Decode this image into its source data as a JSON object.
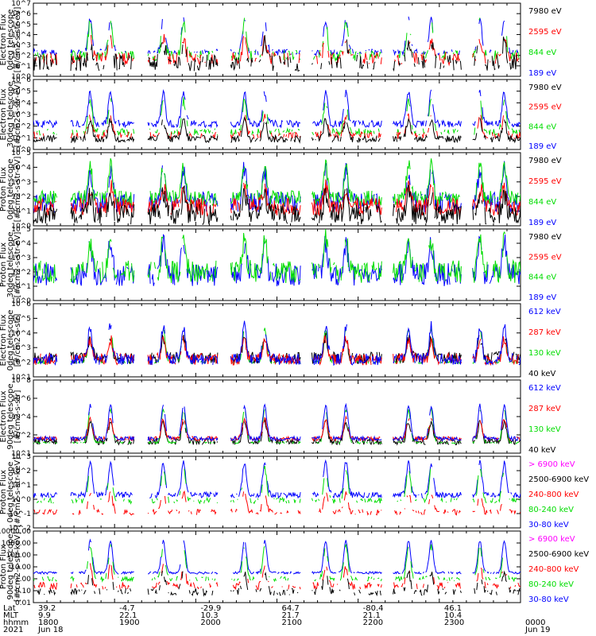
{
  "chart_data": [
    {
      "type": "line",
      "ylabel": [
        "TED",
        "Electron Flux",
        "0deg telescope",
        "[#/cm2-s-str-eV]"
      ],
      "yscale": "log",
      "ylim_exp": [
        0,
        7
      ],
      "tick_labels": [
        "10^0",
        "10^1",
        "10^2",
        "10^3",
        "10^4",
        "10^5",
        "10^6",
        "10^7"
      ],
      "series": [
        {
          "name": "7980 eV",
          "color": "#000000",
          "base": 1.3,
          "jitter": 0.8,
          "mode": "dash"
        },
        {
          "name": "2595 eV",
          "color": "#ff0000",
          "base": 1.7,
          "jitter": 0.6,
          "mode": "dash"
        },
        {
          "name": "844 eV",
          "color": "#00dd00",
          "base": 2.0,
          "jitter": 0.5,
          "mode": "dash"
        },
        {
          "name": "189 eV",
          "color": "#0000ff",
          "base": 2.3,
          "jitter": 0.3,
          "mode": "dash"
        }
      ]
    },
    {
      "type": "line",
      "ylabel": [
        "TED",
        "Electron Flux",
        "30deg telescope",
        "[#/cm2-s-str-eV]"
      ],
      "yscale": "log",
      "ylim_exp": [
        0,
        6
      ],
      "tick_labels": [
        "10^0",
        "10^1",
        "10^2",
        "10^3",
        "10^4",
        "10^5",
        "10^6"
      ],
      "series": [
        {
          "name": "7980 eV",
          "color": "#000000",
          "base": 0.9,
          "jitter": 0.3,
          "mode": "solid"
        },
        {
          "name": "2595 eV",
          "color": "#ff0000",
          "base": 1.2,
          "jitter": 0.3,
          "mode": "dash"
        },
        {
          "name": "844 eV",
          "color": "#00dd00",
          "base": 1.5,
          "jitter": 0.3,
          "mode": "dash"
        },
        {
          "name": "189 eV",
          "color": "#0000ff",
          "base": 2.2,
          "jitter": 0.3,
          "mode": "solid"
        }
      ]
    },
    {
      "type": "line",
      "ylabel": [
        "TED",
        "Proton Flux",
        "0deg telescope",
        "[#/cm2-s-str-eV]"
      ],
      "yscale": "log",
      "ylim_exp": [
        0,
        5
      ],
      "tick_labels": [
        "10^0",
        "10^1",
        "10^2",
        "10^3",
        "10^4",
        "10^5"
      ],
      "series": [
        {
          "name": "7980 eV",
          "color": "#000000",
          "base": 0.8,
          "jitter": 0.7,
          "mode": "solid"
        },
        {
          "name": "2595 eV",
          "color": "#ff0000",
          "base": 1.3,
          "jitter": 0.6,
          "mode": "solid"
        },
        {
          "name": "844 eV",
          "color": "#00dd00",
          "base": 1.9,
          "jitter": 0.5,
          "mode": "solid"
        },
        {
          "name": "189 eV",
          "color": "#0000ff",
          "base": 1.6,
          "jitter": 0.7,
          "mode": "solid"
        }
      ]
    },
    {
      "type": "line",
      "ylabel": [
        "TED",
        "Proton Flux",
        "30deg telescope",
        "[#/cm2-s-str-eV]"
      ],
      "yscale": "log",
      "ylim_exp": [
        0,
        5
      ],
      "tick_labels": [
        "10^0",
        "10^1",
        "10^2",
        "10^3",
        "10^4",
        "10^5"
      ],
      "series": [
        {
          "name": "7980 eV",
          "color": "#000000",
          "base": 0.5,
          "jitter": 0.3,
          "mode": "none"
        },
        {
          "name": "2595 eV",
          "color": "#ff0000",
          "base": 0.5,
          "jitter": 0.3,
          "mode": "none"
        },
        {
          "name": "844 eV",
          "color": "#00dd00",
          "base": 2.0,
          "jitter": 0.8,
          "mode": "solid"
        },
        {
          "name": "189 eV",
          "color": "#0000ff",
          "base": 1.8,
          "jitter": 0.8,
          "mode": "solid"
        }
      ]
    },
    {
      "type": "line",
      "ylabel": [
        "MEPED",
        "Electron Flux",
        "0deg telescope",
        "[#/cm2-s-str]"
      ],
      "yscale": "log",
      "ylim_exp": [
        1,
        6
      ],
      "tick_labels": [
        "10^1",
        "10^2",
        "10^3",
        "10^4",
        "10^5",
        "10^6"
      ],
      "series": [
        {
          "name": "612 keV",
          "color": "#0000ff",
          "base": 2.2,
          "jitter": 0.4,
          "mode": "solid"
        },
        {
          "name": "287 keV",
          "color": "#ff0000",
          "base": 2.2,
          "jitter": 0.4,
          "mode": "solid"
        },
        {
          "name": "130 keV",
          "color": "#00dd00",
          "base": 2.0,
          "jitter": 0.1,
          "mode": "dash"
        },
        {
          "name": "40 keV",
          "color": "#000000",
          "base": 2.3,
          "jitter": 0.4,
          "mode": "solid"
        }
      ]
    },
    {
      "type": "line",
      "ylabel": [
        "MEPED",
        "Electron Flux",
        "90deg telescope",
        "[#/cm2-s-str]"
      ],
      "yscale": "log",
      "ylim_exp": [
        1,
        8
      ],
      "tick_labels": [
        "10^1",
        "10^2",
        "10^4",
        "10^6",
        "10^8"
      ],
      "series": [
        {
          "name": "612 keV",
          "color": "#0000ff",
          "base": 2.4,
          "jitter": 0.2,
          "mode": "solid"
        },
        {
          "name": "287 keV",
          "color": "#ff0000",
          "base": 2.4,
          "jitter": 0.2,
          "mode": "solid"
        },
        {
          "name": "130 keV",
          "color": "#00dd00",
          "base": 2.0,
          "jitter": 0.1,
          "mode": "dash"
        },
        {
          "name": "40 keV",
          "color": "#000000",
          "base": 2.1,
          "jitter": 0.3,
          "mode": "solid"
        }
      ]
    },
    {
      "type": "line",
      "ylabel": [
        "MEPED",
        "Proton Flux",
        "0deg telescope",
        "[#/cm2-s-str-keV]"
      ],
      "yscale": "log",
      "ylim_exp": [
        -2,
        3
      ],
      "tick_labels": [
        "10^-2",
        "10^-1",
        "10^0",
        "10^1",
        "10^2",
        "10^3"
      ],
      "series": [
        {
          "name": "> 6900 keV",
          "color": "#ff00ff",
          "base": -1.6,
          "jitter": 0.2,
          "mode": "none"
        },
        {
          "name": "2500-6900 keV",
          "color": "#000000",
          "base": -1.3,
          "jitter": 0.2,
          "mode": "none"
        },
        {
          "name": "240-800 keV",
          "color": "#ff0000",
          "base": -0.9,
          "jitter": 0.2,
          "mode": "dash"
        },
        {
          "name": "80-240 keV",
          "color": "#00dd00",
          "base": -0.1,
          "jitter": 0.2,
          "mode": "dash"
        },
        {
          "name": "30-80 keV",
          "color": "#0000ff",
          "base": 0.3,
          "jitter": 0.2,
          "mode": "solid"
        }
      ]
    },
    {
      "type": "line",
      "ylabel": [
        "MEPED",
        "Proton Flux",
        "90deg telescope",
        "[#/cm2-s-str-keV]"
      ],
      "yscale": "log",
      "ylim_exp": [
        -2,
        4
      ],
      "tick_labels": [
        "0.01",
        "0.10",
        "1.00",
        "10.00",
        "100.00",
        "1000.00",
        "10000.00"
      ],
      "series": [
        {
          "name": "> 6900 keV",
          "color": "#ff00ff",
          "base": -1.6,
          "jitter": 0.2,
          "mode": "none"
        },
        {
          "name": "2500-6900 keV",
          "color": "#000000",
          "base": -1.1,
          "jitter": 0.3,
          "mode": "dash"
        },
        {
          "name": "240-800 keV",
          "color": "#ff0000",
          "base": -0.6,
          "jitter": 0.3,
          "mode": "dash"
        },
        {
          "name": "80-240 keV",
          "color": "#00dd00",
          "base": 0.0,
          "jitter": 0.2,
          "mode": "dash"
        },
        {
          "name": "30-80 keV",
          "color": "#0000ff",
          "base": 0.5,
          "jitter": 0.1,
          "mode": "solid"
        }
      ]
    }
  ],
  "orbit": {
    "x_range_hours": [
      18,
      24
    ],
    "peak_hours": [
      18.7,
      18.95,
      19.6,
      19.85,
      20.6,
      20.85,
      21.6,
      21.85,
      22.62,
      22.9,
      23.5,
      23.8
    ],
    "gap_ranges": [
      [
        18.3,
        18.45
      ],
      [
        19.25,
        19.4
      ],
      [
        20.28,
        20.42
      ],
      [
        21.3,
        21.42
      ],
      [
        22.3,
        22.42
      ],
      [
        23.28,
        23.4
      ]
    ]
  },
  "bottom_axis": {
    "row_labels": [
      "Lat",
      "MLT",
      "hhmm",
      "2021"
    ],
    "columns": [
      {
        "lat": "39.2",
        "mlt": "9.9",
        "hhmm": "1800",
        "date": "Jun 18"
      },
      {
        "lat": "-4.7",
        "mlt": "22.1",
        "hhmm": "1900",
        "date": ""
      },
      {
        "lat": "-29.9",
        "mlt": "10.3",
        "hhmm": "2000",
        "date": ""
      },
      {
        "lat": "64.7",
        "mlt": "21.7",
        "hhmm": "2100",
        "date": ""
      },
      {
        "lat": "-80.4",
        "mlt": "21.1",
        "hhmm": "2200",
        "date": ""
      },
      {
        "lat": "46.1",
        "mlt": "10.4",
        "hhmm": "2300",
        "date": ""
      },
      {
        "lat": "",
        "mlt": "",
        "hhmm": "0000",
        "date": "Jun 19"
      }
    ]
  }
}
